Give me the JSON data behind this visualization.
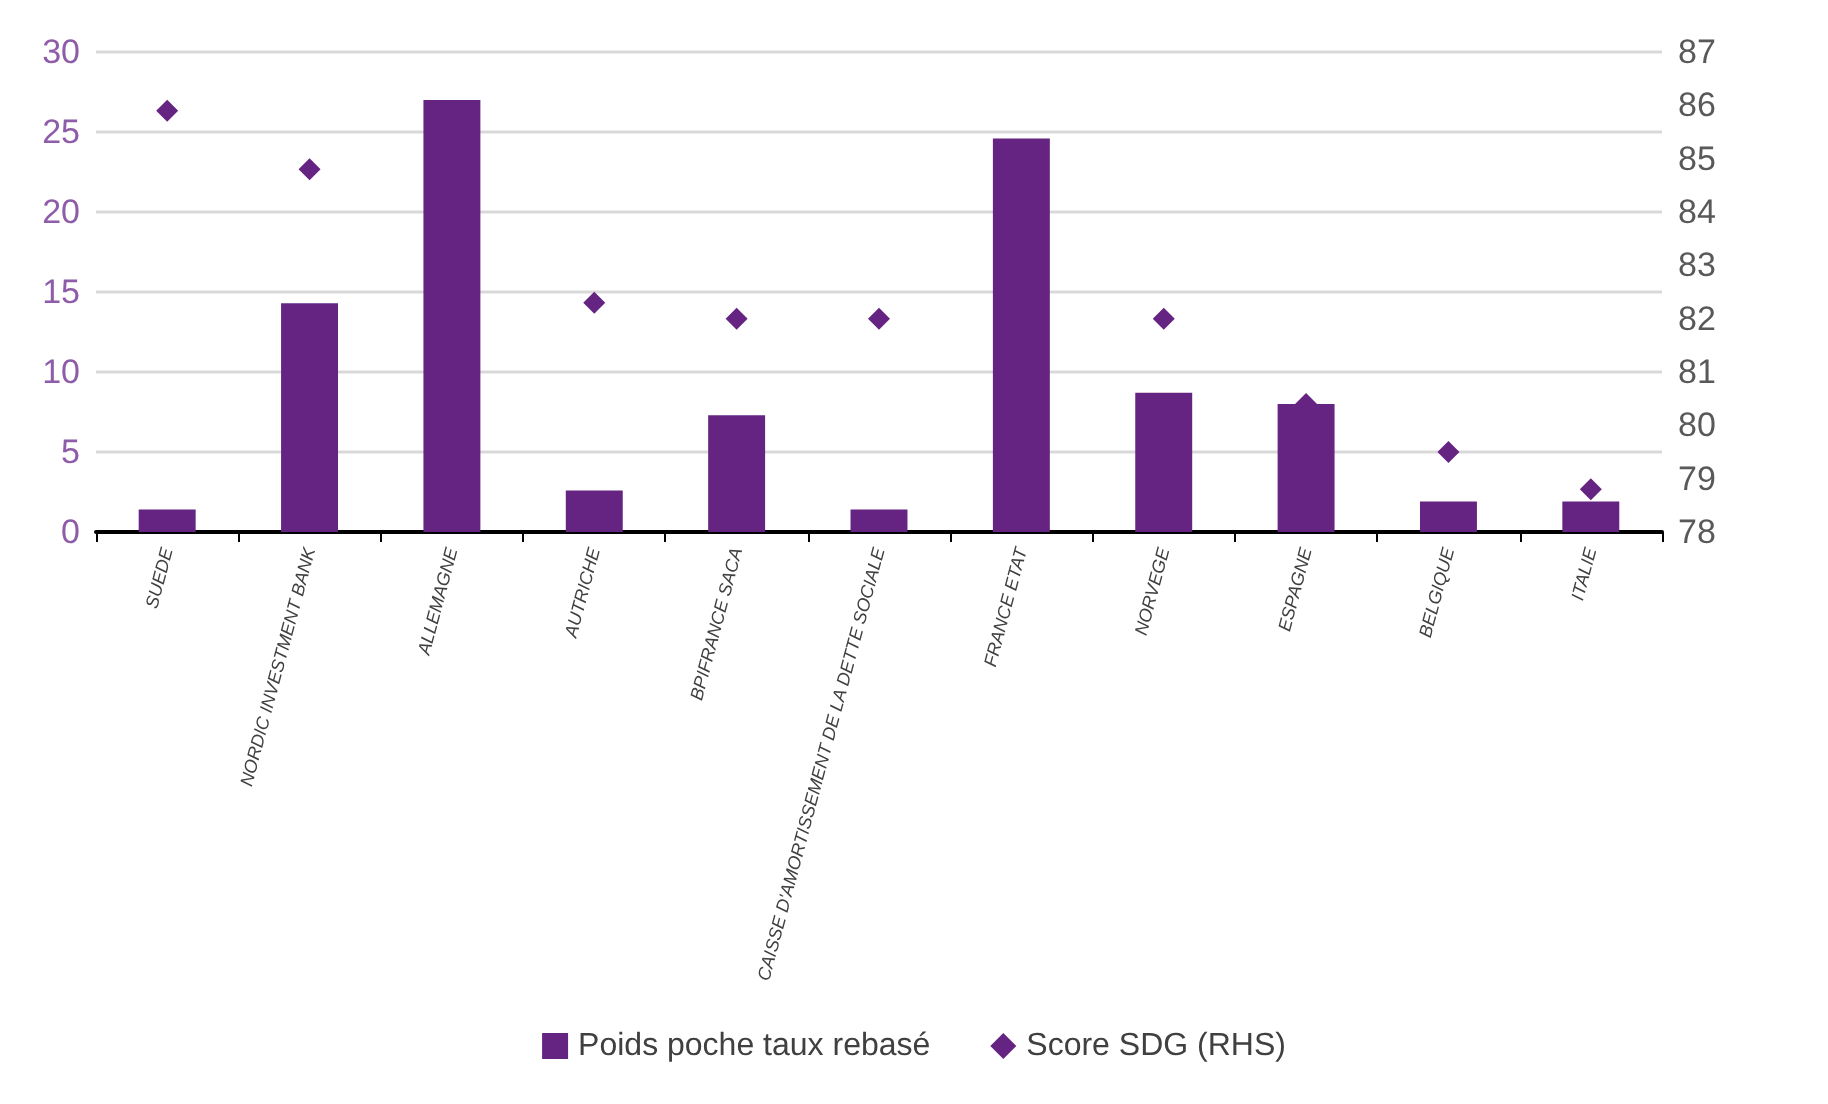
{
  "chart_data": {
    "type": "bar",
    "categories": [
      "SUEDE",
      "NORDIC INVESTMENT BANK",
      "ALLEMAGNE",
      "AUTRICHE",
      "BPIFRANCE SACA",
      "CAISSE D'AMORTISSEMENT DE LA DETTE SOCIALE",
      "FRANCE ETAT",
      "NORVEGE",
      "ESPAGNE",
      "BELGIQUE",
      "ITALIE"
    ],
    "series": [
      {
        "name": "Poids poche taux rebasé",
        "color": "#662482",
        "values": [
          1.4,
          14.3,
          27.0,
          2.6,
          7.3,
          1.4,
          24.6,
          8.7,
          8.0,
          1.9,
          1.9
        ]
      },
      {
        "name": "Score SDG (RHS)",
        "type": "scatter",
        "axis": "y2",
        "color": "#662482",
        "values": [
          85.9,
          84.8,
          null,
          82.3,
          82.0,
          82.0,
          null,
          82.0,
          80.4,
          79.5,
          78.8
        ]
      }
    ],
    "ylim": [
      0,
      30
    ],
    "yticks": [
      0,
      5,
      10,
      15,
      20,
      25,
      30
    ],
    "y2lim": [
      78,
      87
    ],
    "y2ticks": [
      78,
      79,
      80,
      81,
      82,
      83,
      84,
      85,
      86,
      87
    ],
    "grid": "y",
    "legend": "bottom",
    "marker": "diamond"
  }
}
